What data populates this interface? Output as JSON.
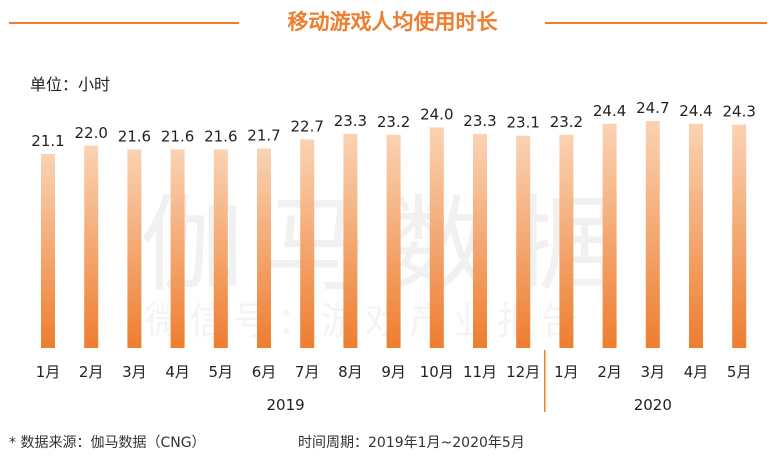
{
  "title": "移动游戏人均使用时长",
  "unit_label": "单位：小时",
  "watermark": {
    "main": "伽马数据",
    "sub": "微信号：游戏产业报告"
  },
  "footer": {
    "source": "*  数据来源：伽马数据（CNG）",
    "period": "时间周期：2019年1月~2020年5月"
  },
  "colors": {
    "accent": "#ee7d2f",
    "bar_top": "#fad3b4",
    "bar_bottom": "#ee7d2f"
  },
  "chart_data": {
    "type": "bar",
    "title": "移动游戏人均使用时长",
    "ylabel": "单位：小时",
    "categories": [
      "1月",
      "2月",
      "3月",
      "4月",
      "5月",
      "6月",
      "7月",
      "8月",
      "9月",
      "10月",
      "11月",
      "12月",
      "1月",
      "2月",
      "3月",
      "4月",
      "5月"
    ],
    "values": [
      21.1,
      22.0,
      21.6,
      21.6,
      21.6,
      21.7,
      22.7,
      23.3,
      23.2,
      24.0,
      23.3,
      23.1,
      23.2,
      24.4,
      24.7,
      24.4,
      24.3
    ],
    "value_labels": [
      "21.1",
      "22.0",
      "21.6",
      "21.6",
      "21.6",
      "21.7",
      "22.7",
      "23.3",
      "23.2",
      "24.0",
      "23.3",
      "23.1",
      "23.2",
      "24.4",
      "24.7",
      "24.4",
      "24.3"
    ],
    "groups": [
      {
        "label": "2019",
        "count": 12
      },
      {
        "label": "2020",
        "count": 5
      }
    ],
    "ylim": [
      0,
      24.7
    ],
    "grid": false,
    "legend": "none"
  }
}
